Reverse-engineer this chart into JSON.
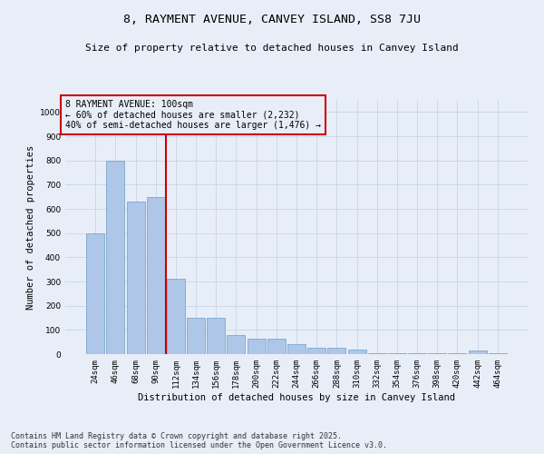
{
  "title": "8, RAYMENT AVENUE, CANVEY ISLAND, SS8 7JU",
  "subtitle": "Size of property relative to detached houses in Canvey Island",
  "xlabel": "Distribution of detached houses by size in Canvey Island",
  "ylabel": "Number of detached properties",
  "categories": [
    "24sqm",
    "46sqm",
    "68sqm",
    "90sqm",
    "112sqm",
    "134sqm",
    "156sqm",
    "178sqm",
    "200sqm",
    "222sqm",
    "244sqm",
    "266sqm",
    "288sqm",
    "310sqm",
    "332sqm",
    "354sqm",
    "376sqm",
    "398sqm",
    "420sqm",
    "442sqm",
    "464sqm"
  ],
  "values": [
    500,
    800,
    630,
    650,
    310,
    150,
    150,
    80,
    65,
    65,
    40,
    28,
    28,
    20,
    5,
    5,
    5,
    5,
    5,
    15,
    5
  ],
  "bar_color": "#aec6e8",
  "bar_edge_color": "#6a9fc8",
  "bar_linewidth": 0.5,
  "grid_color": "#c8d4e8",
  "bg_color": "#e8eef8",
  "vline_x": 3.5,
  "vline_color": "#cc0000",
  "annotation_text": "8 RAYMENT AVENUE: 100sqm\n← 60% of detached houses are smaller (2,232)\n40% of semi-detached houses are larger (1,476) →",
  "annotation_box_edgecolor": "#cc0000",
  "ylim": [
    0,
    1050
  ],
  "yticks": [
    0,
    100,
    200,
    300,
    400,
    500,
    600,
    700,
    800,
    900,
    1000
  ],
  "footer": "Contains HM Land Registry data © Crown copyright and database right 2025.\nContains public sector information licensed under the Open Government Licence v3.0.",
  "title_fontsize": 9.5,
  "subtitle_fontsize": 8,
  "axis_label_fontsize": 7.5,
  "tick_fontsize": 6.5,
  "annotation_fontsize": 7,
  "footer_fontsize": 6
}
